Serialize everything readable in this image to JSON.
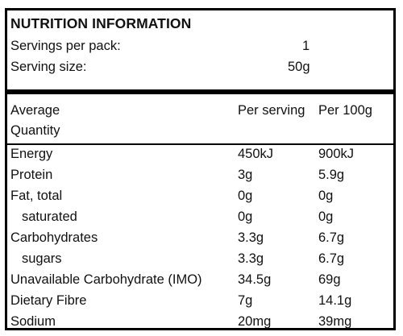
{
  "title": "NUTRITION INFORMATION",
  "servings_per_pack_label": "Servings per pack:",
  "servings_per_pack_value": "1",
  "serving_size_label": "Serving size:",
  "serving_size_value": "50g",
  "header": {
    "quantity_line1": "Average",
    "quantity_line2": "Quantity",
    "per_serving": "Per serving",
    "per_100g": "Per 100g"
  },
  "rows": [
    {
      "name": "Energy",
      "per_serving": "450kJ",
      "per_100g": "900kJ",
      "indent": false
    },
    {
      "name": "Protein",
      "per_serving": "3g",
      "per_100g": "5.9g",
      "indent": false
    },
    {
      "name": "Fat, total",
      "per_serving": "0g",
      "per_100g": "0g",
      "indent": false
    },
    {
      "name": "saturated",
      "per_serving": "0g",
      "per_100g": "0g",
      "indent": true
    },
    {
      "name": "Carbohydrates",
      "per_serving": "3.3g",
      "per_100g": "6.7g",
      "indent": false
    },
    {
      "name": "sugars",
      "per_serving": "3.3g",
      "per_100g": "6.7g",
      "indent": true
    },
    {
      "name": "Unavailable Carbohydrate (IMO)",
      "per_serving": "34.5g",
      "per_100g": "69g",
      "indent": false
    },
    {
      "name": "Dietary Fibre",
      "per_serving": "7g",
      "per_100g": "14.1g",
      "indent": false
    },
    {
      "name": "Sodium",
      "per_serving": "20mg",
      "per_100g": "39mg",
      "indent": false
    }
  ]
}
